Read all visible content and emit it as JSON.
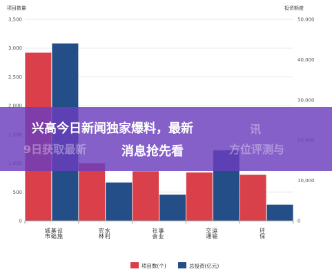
{
  "colors": {
    "series1": "#d9404a",
    "series2": "#244e87",
    "overlay": "#6a3dbd",
    "grid": "#e6e6e6",
    "background": "#ffffff"
  },
  "chart_data": {
    "type": "bar",
    "left_axis_title": "项目数量",
    "right_axis_title": "投资额度",
    "categories": [
      [
        "城市",
        "基础",
        "设施"
      ],
      [
        "农林",
        "水利"
      ],
      [
        "社会",
        "事业"
      ],
      [
        "交通",
        "运输"
      ],
      [
        "环保"
      ]
    ],
    "series": [
      {
        "name": "项目数(个)",
        "axis": "left",
        "values": [
          2920,
          1000,
          860,
          840,
          800
        ]
      },
      {
        "name": "总投资(亿元)",
        "axis": "right",
        "values": [
          44000,
          9500,
          6500,
          17500,
          4000
        ]
      }
    ],
    "left_axis": {
      "min": 0,
      "max": 3500,
      "ticks": [
        "0",
        "500",
        "1,000",
        "1,500",
        "2,000",
        "2,500",
        "3,000",
        "3,500"
      ]
    },
    "right_axis": {
      "min": 0,
      "max": 50000,
      "ticks": [
        "0",
        "10,000",
        "20,000",
        "30,000",
        "40,000",
        "50,000"
      ]
    },
    "grid": true,
    "legend_position": "bottom"
  },
  "overlay": {
    "headline_line1": "兴高今日新闻独家爆料，最新",
    "headline_line2": "消息抢先看",
    "ghost_line1": "讯",
    "ghost_line2": "9日获取最新",
    "ghost_line3": "方位评测与"
  }
}
